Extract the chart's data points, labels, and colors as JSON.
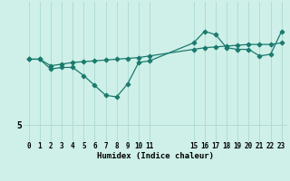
{
  "bg_color": "#cef0e8",
  "line_color": "#1a7a6e",
  "grid_color": "#b0ddd5",
  "xlabel": "Humidex (Indice chaleur)",
  "x_ticks": [
    0,
    1,
    2,
    3,
    4,
    5,
    6,
    7,
    8,
    9,
    10,
    11,
    15,
    16,
    17,
    18,
    19,
    20,
    21,
    22,
    23
  ],
  "x_tick_labels": [
    "0",
    "1",
    "2",
    "3",
    "4",
    "5",
    "6",
    "7",
    "8",
    "9",
    "10",
    "11",
    "15",
    "16",
    "17",
    "18",
    "19",
    "20",
    "21",
    "22",
    "23"
  ],
  "series1_x": [
    0,
    1,
    2,
    3,
    4,
    5,
    6,
    7,
    8,
    9,
    10,
    11,
    15,
    16,
    17,
    18,
    19,
    20,
    21,
    22,
    23
  ],
  "series1_y": [
    9.0,
    9.0,
    8.4,
    8.5,
    8.5,
    8.0,
    7.4,
    6.8,
    6.7,
    7.5,
    8.8,
    8.9,
    10.0,
    10.7,
    10.5,
    9.7,
    9.6,
    9.6,
    9.2,
    9.3,
    10.7
  ],
  "series2_x": [
    0,
    1,
    2,
    3,
    4,
    5,
    6,
    7,
    8,
    9,
    10,
    11,
    15,
    16,
    17,
    18,
    19,
    20,
    21,
    22,
    23
  ],
  "series2_y": [
    9.0,
    9.0,
    8.6,
    8.7,
    8.8,
    8.85,
    8.9,
    8.95,
    9.0,
    9.05,
    9.1,
    9.2,
    9.6,
    9.7,
    9.75,
    9.8,
    9.85,
    9.9,
    9.9,
    9.9,
    10.0
  ],
  "ylim_min": 4.0,
  "ylim_max": 12.5,
  "ytick_val": 5,
  "ytick_label": "5"
}
